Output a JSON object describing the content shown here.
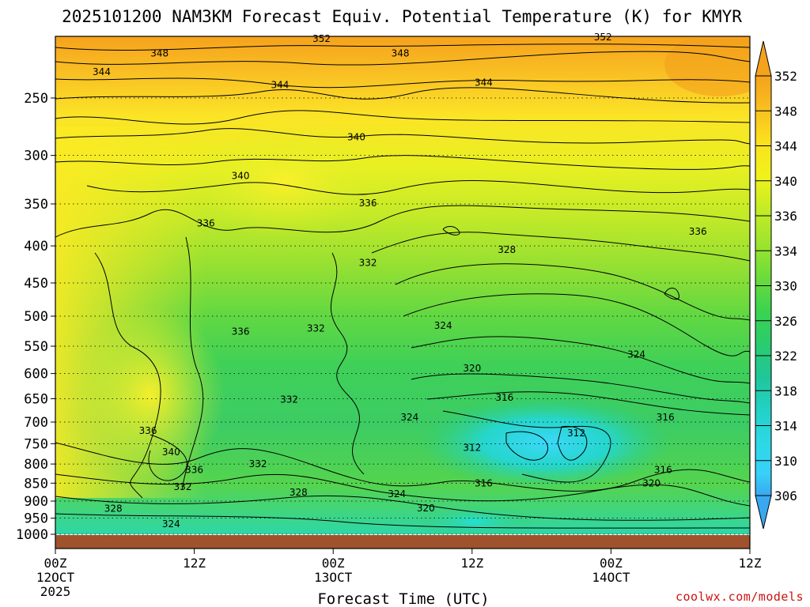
{
  "chart_data": {
    "type": "heatmap",
    "title": "2025101200 NAM3KM Forecast Equiv. Potential Temperature (K) for KMYR",
    "xlabel": "Forecast Time (UTC)",
    "ylabel": "",
    "y_scale": "log-pressure",
    "ylim": [
      1000,
      200
    ],
    "y_ticks": [
      250,
      300,
      350,
      400,
      450,
      500,
      550,
      600,
      650,
      700,
      750,
      800,
      850,
      900,
      950,
      1000
    ],
    "x_range_hours": [
      0,
      60
    ],
    "x_ticks": [
      {
        "hour": 0,
        "label": "00Z",
        "date": "12OCT",
        "year": "2025"
      },
      {
        "hour": 12,
        "label": "12Z",
        "date": "",
        "year": ""
      },
      {
        "hour": 24,
        "label": "00Z",
        "date": "13OCT",
        "year": ""
      },
      {
        "hour": 36,
        "label": "12Z",
        "date": "",
        "year": ""
      },
      {
        "hour": 48,
        "label": "00Z",
        "date": "14OCT",
        "year": ""
      },
      {
        "hour": 60,
        "label": "12Z",
        "date": "",
        "year": ""
      }
    ],
    "colorbar": {
      "labels": [
        352,
        348,
        344,
        340,
        336,
        334,
        330,
        326,
        322,
        318,
        314,
        310,
        306
      ],
      "colors": [
        "#f5a21c",
        "#f8c020",
        "#fbe21e",
        "#f0f21a",
        "#c2ec26",
        "#9de42e",
        "#6cdc3a",
        "#3bd350",
        "#29cc6e",
        "#20c69a",
        "#22d2c8",
        "#2ed8e8",
        "#38cff8",
        "#3aa8f0"
      ]
    },
    "contour_labels": [
      {
        "text": "352",
        "hour": 23.0,
        "p": 207
      },
      {
        "text": "352",
        "hour": 47.3,
        "p": 206
      },
      {
        "text": "348",
        "hour": 9.0,
        "p": 217
      },
      {
        "text": "348",
        "hour": 29.8,
        "p": 217
      },
      {
        "text": "344",
        "hour": 4.0,
        "p": 230
      },
      {
        "text": "344",
        "hour": 19.4,
        "p": 240
      },
      {
        "text": "344",
        "hour": 37.0,
        "p": 238
      },
      {
        "text": "340",
        "hour": 26.0,
        "p": 283
      },
      {
        "text": "340",
        "hour": 16.0,
        "p": 320
      },
      {
        "text": "336",
        "hour": 27.0,
        "p": 349
      },
      {
        "text": "336",
        "hour": 13.0,
        "p": 372
      },
      {
        "text": "336",
        "hour": 55.5,
        "p": 382
      },
      {
        "text": "332",
        "hour": 27.0,
        "p": 422
      },
      {
        "text": "328",
        "hour": 39.0,
        "p": 405
      },
      {
        "text": "336",
        "hour": 16.0,
        "p": 525
      },
      {
        "text": "332",
        "hour": 22.5,
        "p": 520
      },
      {
        "text": "324",
        "hour": 33.5,
        "p": 515
      },
      {
        "text": "324",
        "hour": 50.2,
        "p": 565
      },
      {
        "text": "320",
        "hour": 36.0,
        "p": 590
      },
      {
        "text": "316",
        "hour": 38.8,
        "p": 648
      },
      {
        "text": "332",
        "hour": 20.2,
        "p": 652
      },
      {
        "text": "324",
        "hour": 30.6,
        "p": 690
      },
      {
        "text": "316",
        "hour": 52.7,
        "p": 690
      },
      {
        "text": "336",
        "hour": 8.0,
        "p": 720
      },
      {
        "text": "312",
        "hour": 45.0,
        "p": 725
      },
      {
        "text": "340",
        "hour": 10.0,
        "p": 770
      },
      {
        "text": "312",
        "hour": 36.0,
        "p": 760
      },
      {
        "text": "332",
        "hour": 17.5,
        "p": 800
      },
      {
        "text": "336",
        "hour": 12.0,
        "p": 815
      },
      {
        "text": "316",
        "hour": 52.5,
        "p": 815
      },
      {
        "text": "316",
        "hour": 37.0,
        "p": 850
      },
      {
        "text": "320",
        "hour": 51.5,
        "p": 850
      },
      {
        "text": "332",
        "hour": 11.0,
        "p": 860
      },
      {
        "text": "328",
        "hour": 21.0,
        "p": 875
      },
      {
        "text": "324",
        "hour": 29.5,
        "p": 880
      },
      {
        "text": "328",
        "hour": 5.0,
        "p": 922
      },
      {
        "text": "320",
        "hour": 32.0,
        "p": 920
      },
      {
        "text": "324",
        "hour": 10.0,
        "p": 968
      }
    ]
  },
  "credit": "coolwx.com/models"
}
